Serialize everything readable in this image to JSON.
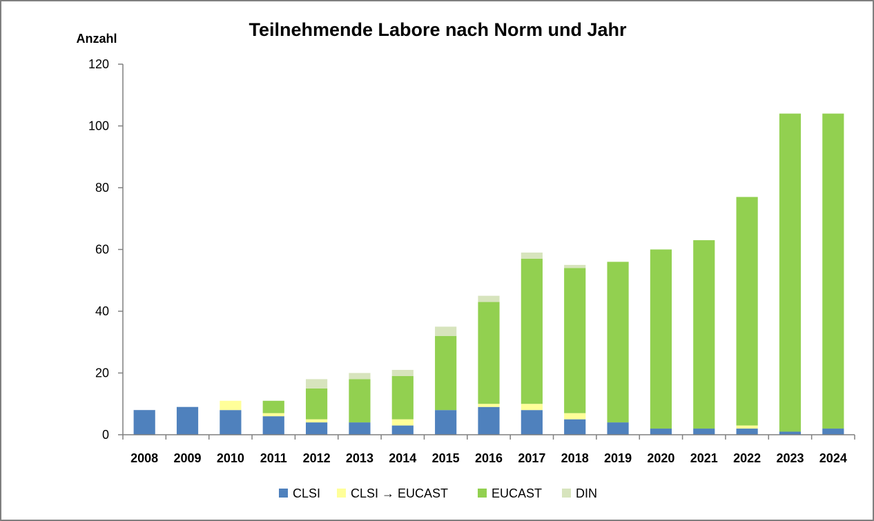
{
  "chart_data": {
    "type": "bar",
    "stacked": true,
    "title": "Teilnehmende Labore nach Norm und Jahr",
    "ylabel": "Anzahl",
    "xlabel": "",
    "ylim": [
      0,
      120
    ],
    "yticks": [
      0,
      20,
      40,
      60,
      80,
      100,
      120
    ],
    "grid": false,
    "legend_position": "bottom",
    "categories": [
      "2008",
      "2009",
      "2010",
      "2011",
      "2012",
      "2013",
      "2014",
      "2015",
      "2016",
      "2017",
      "2018",
      "2019",
      "2020",
      "2021",
      "2022",
      "2023",
      "2024"
    ],
    "series": [
      {
        "name": "CLSI",
        "color": "#4f81bd",
        "values": [
          8,
          9,
          8,
          6,
          4,
          4,
          3,
          8,
          9,
          8,
          5,
          4,
          2,
          2,
          2,
          1,
          2
        ]
      },
      {
        "name": "CLSI → EUCAST",
        "color": "#ffff99",
        "values": [
          0,
          0,
          3,
          1,
          1,
          0,
          2,
          0,
          1,
          2,
          2,
          0,
          0,
          0,
          1,
          0,
          0
        ]
      },
      {
        "name": "EUCAST",
        "color": "#92d050",
        "values": [
          0,
          0,
          0,
          4,
          10,
          14,
          14,
          24,
          33,
          47,
          47,
          52,
          58,
          61,
          74,
          103,
          102
        ]
      },
      {
        "name": "DIN",
        "color": "#d7e4bd",
        "values": [
          0,
          0,
          0,
          0,
          3,
          2,
          2,
          3,
          2,
          2,
          1,
          0,
          0,
          0,
          0,
          0,
          0
        ]
      }
    ]
  }
}
